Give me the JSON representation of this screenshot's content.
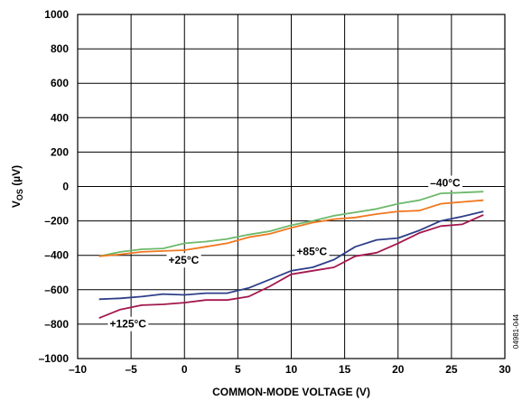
{
  "chart_data": {
    "type": "line",
    "title": "",
    "xlabel": "COMMON-MODE VOLTAGE (V)",
    "ylabel": "V",
    "ylabel_sub": "OS",
    "ylabel_unit": " (µV)",
    "xlim": [
      -10,
      30
    ],
    "ylim": [
      -1000,
      1000
    ],
    "x_ticks": [
      -10,
      -5,
      0,
      5,
      10,
      15,
      20,
      25,
      30
    ],
    "x_tick_labels": [
      "–10",
      "–5",
      "0",
      "5",
      "10",
      "15",
      "20",
      "25",
      "30"
    ],
    "y_ticks": [
      1000,
      800,
      600,
      400,
      200,
      0,
      -200,
      -400,
      -600,
      -800,
      -1000
    ],
    "y_tick_labels": [
      "1000",
      "800",
      "600",
      "400",
      "200",
      "0",
      "–200",
      "–400",
      "–600",
      "–800",
      "–1000"
    ],
    "grid": true,
    "figure_id": "04981-044",
    "series": [
      {
        "name": "–40°C",
        "color": "#6cb96b",
        "x": [
          -8,
          -6,
          -4,
          -2,
          0,
          2,
          4,
          6,
          8,
          10,
          12,
          14,
          16,
          18,
          20,
          22,
          24,
          26,
          28
        ],
        "y": [
          -405,
          -380,
          -365,
          -360,
          -330,
          -320,
          -305,
          -280,
          -260,
          -225,
          -200,
          -170,
          -150,
          -130,
          -100,
          -80,
          -40,
          -35,
          -30
        ]
      },
      {
        "name": "+25°C",
        "color": "#f07820",
        "x": [
          -8,
          -6,
          -4,
          -2,
          0,
          2,
          4,
          6,
          8,
          10,
          12,
          14,
          16,
          18,
          20,
          22,
          24,
          26,
          28
        ],
        "y": [
          -405,
          -395,
          -380,
          -375,
          -370,
          -350,
          -330,
          -295,
          -275,
          -240,
          -210,
          -190,
          -180,
          -160,
          -145,
          -140,
          -100,
          -90,
          -80
        ]
      },
      {
        "name": "+85°C",
        "color": "#2e3f8a",
        "x": [
          -8,
          -6,
          -4,
          -2,
          0,
          2,
          4,
          6,
          8,
          10,
          12,
          14,
          16,
          18,
          20,
          22,
          24,
          26,
          28
        ],
        "y": [
          -655,
          -650,
          -640,
          -625,
          -630,
          -620,
          -620,
          -590,
          -540,
          -490,
          -470,
          -425,
          -350,
          -310,
          -300,
          -255,
          -200,
          -175,
          -145
        ]
      },
      {
        "name": "+125°C",
        "color": "#a3174d",
        "x": [
          -8,
          -6,
          -4,
          -2,
          0,
          2,
          4,
          6,
          8,
          10,
          12,
          14,
          16,
          18,
          20,
          22,
          24,
          26,
          28
        ],
        "y": [
          -765,
          -715,
          -690,
          -685,
          -675,
          -660,
          -660,
          -640,
          -580,
          -510,
          -490,
          -470,
          -405,
          -385,
          -330,
          -270,
          -230,
          -220,
          -165
        ]
      }
    ],
    "annotations": [
      {
        "text": "–40°C",
        "x": 23,
        "y": 0
      },
      {
        "text": "+25°C",
        "x": -1.5,
        "y": -450
      },
      {
        "text": "+85°C",
        "x": 10.5,
        "y": -400
      },
      {
        "text": "+125°C",
        "x": -7,
        "y": -820
      }
    ]
  }
}
